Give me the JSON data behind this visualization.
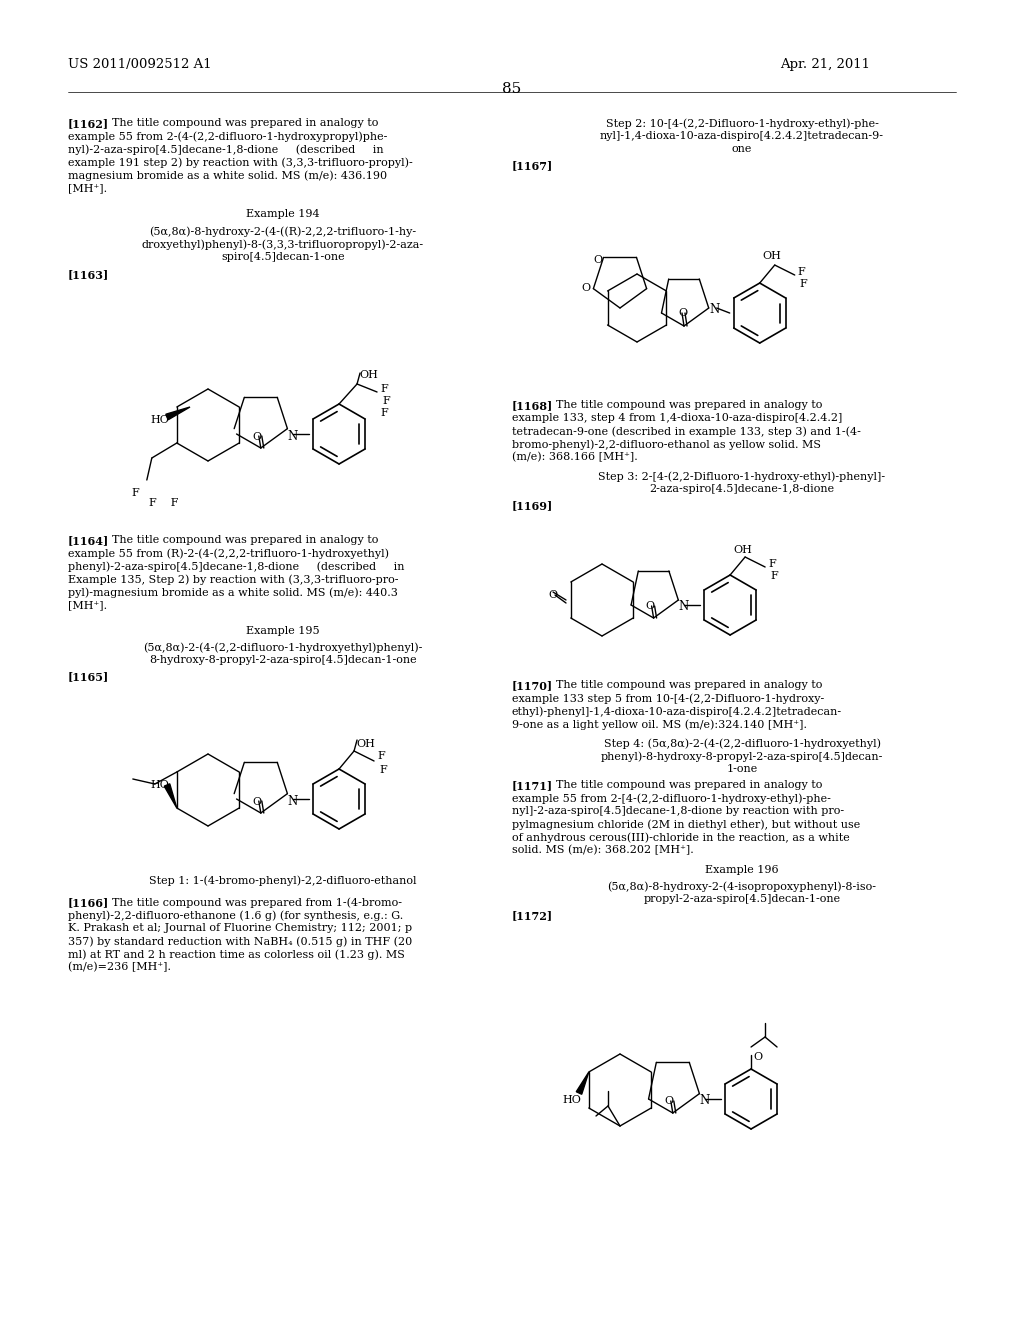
{
  "background_color": "#ffffff",
  "header_left": "US 2011/0092512 A1",
  "header_right": "Apr. 21, 2011",
  "page_number": "85",
  "body_fontsize": 8.0,
  "label_fontsize": 8.0
}
